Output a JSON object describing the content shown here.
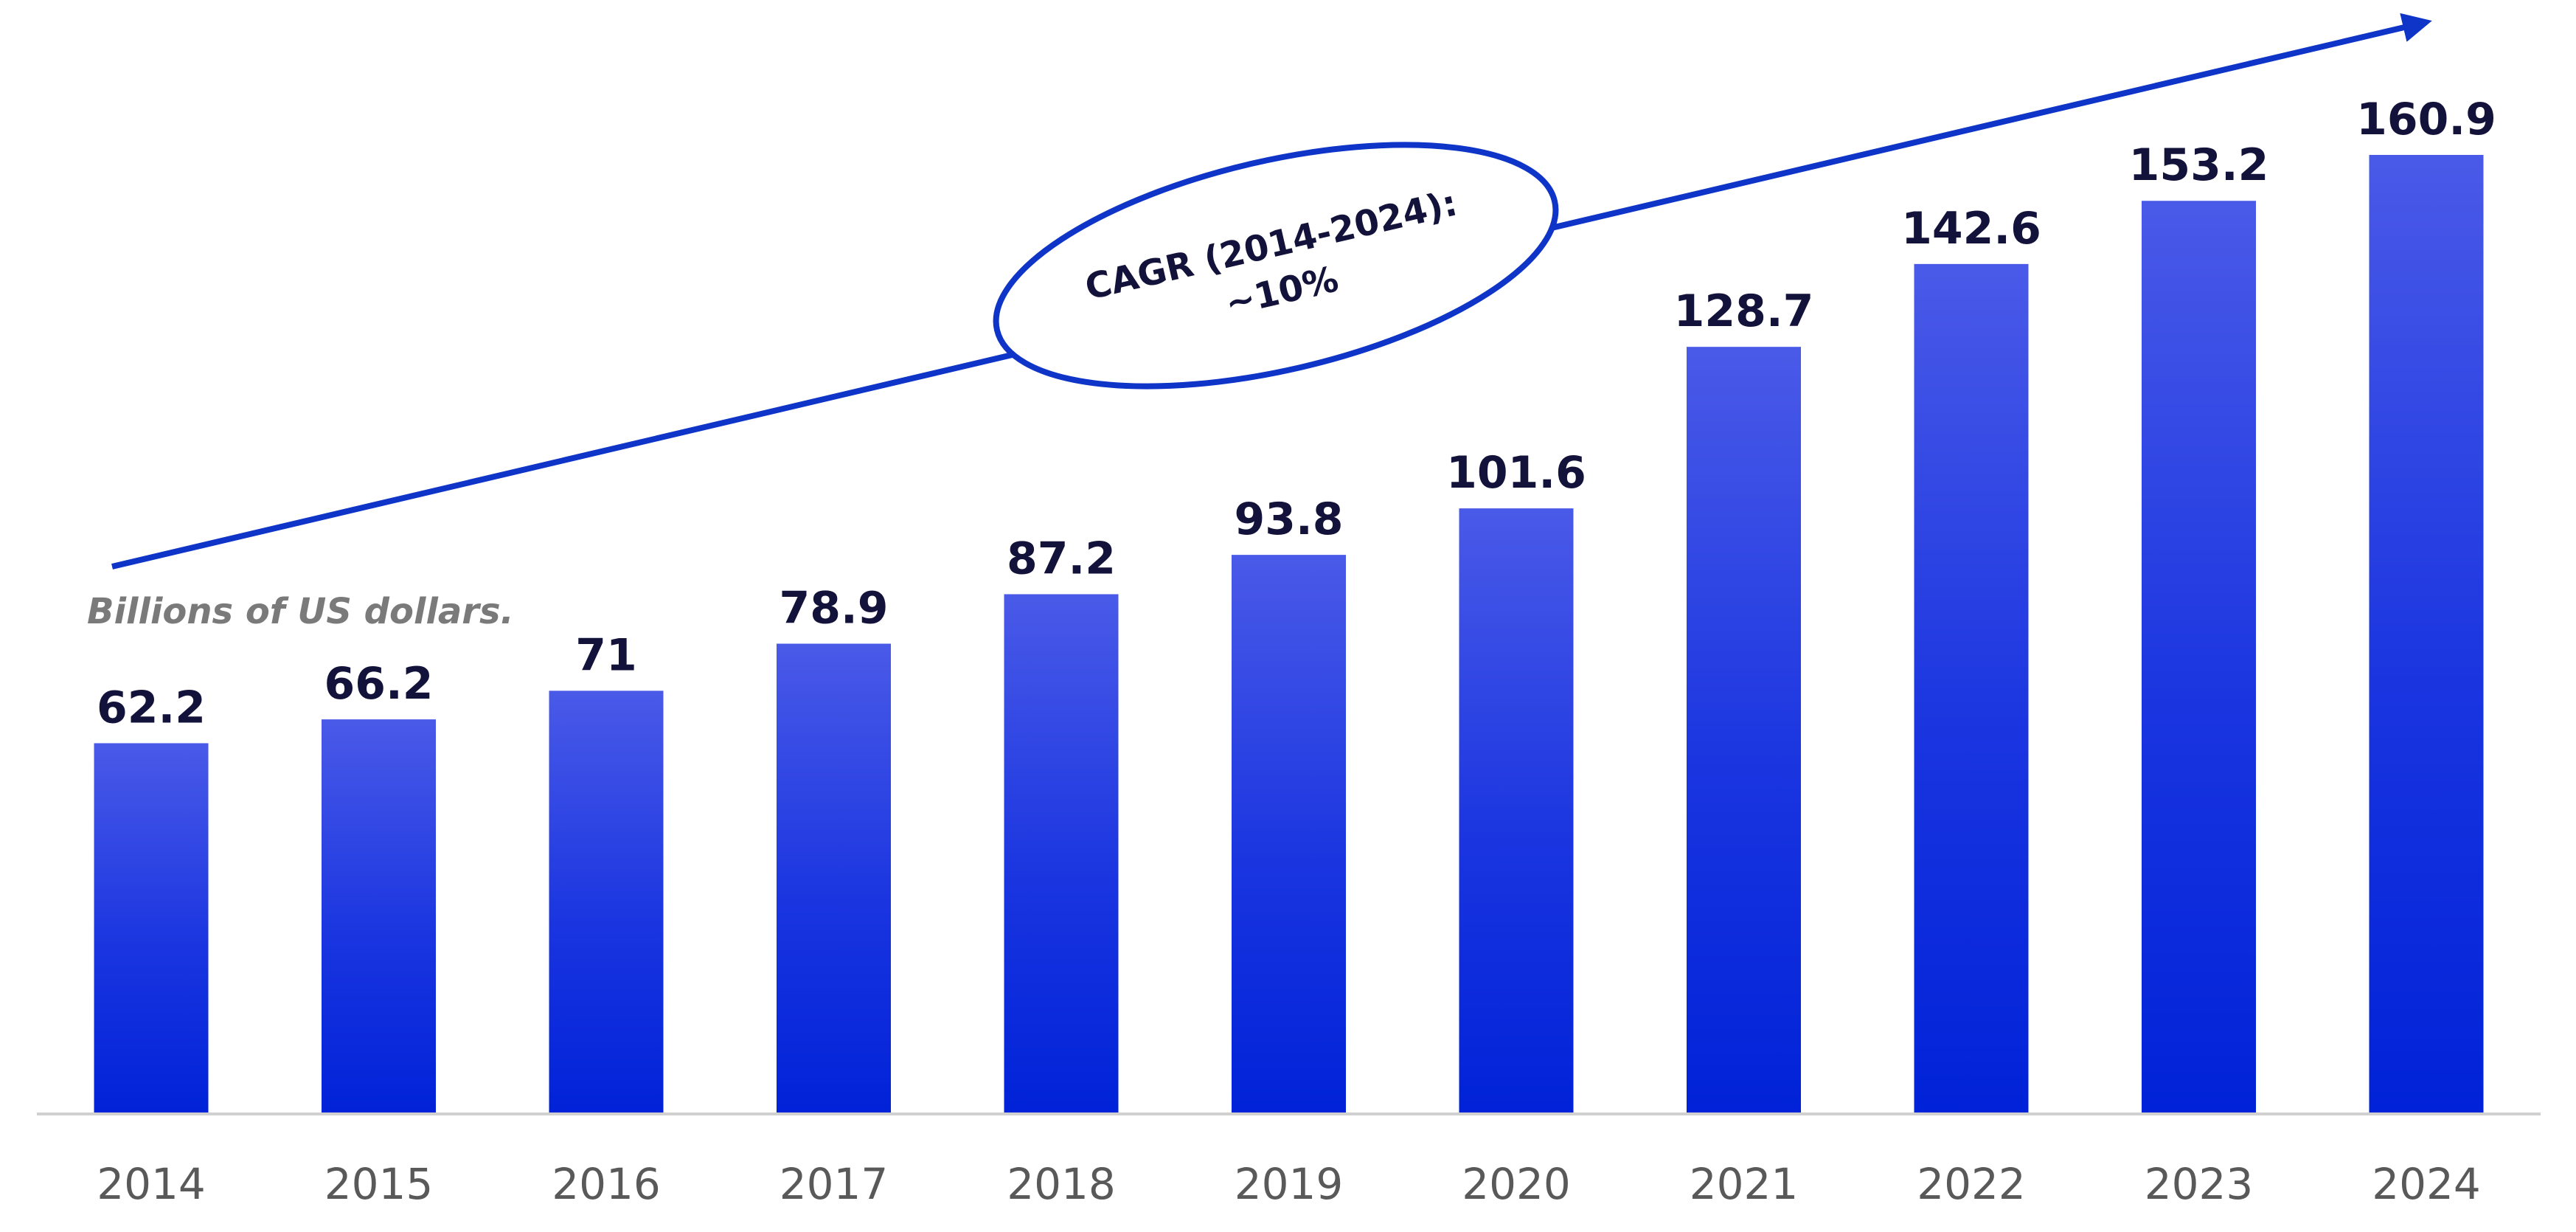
{
  "chart_data": {
    "type": "bar",
    "title": "",
    "xlabel": "",
    "ylabel": "",
    "unit_label": "Billions of US dollars.",
    "categories": [
      "2014",
      "2015",
      "2016",
      "2017",
      "2018",
      "2019",
      "2020",
      "2021",
      "2022",
      "2023",
      "2024"
    ],
    "values": [
      62.2,
      66.2,
      71,
      78.9,
      87.2,
      93.8,
      101.6,
      128.7,
      142.6,
      153.2,
      160.9
    ],
    "value_labels": [
      "62.2",
      "66.2",
      "71",
      "78.9",
      "87.2",
      "93.8",
      "101.6",
      "128.7",
      "142.6",
      "153.2",
      "160.9"
    ],
    "ylim": [
      0,
      160.9
    ],
    "grid": false,
    "legend": "none",
    "annotation": {
      "line1": "CAGR (2014-2024):",
      "line2": "~10%"
    },
    "colors": {
      "bar_top": "#4a5ae8",
      "bar_bottom": "#0022d8",
      "arrow": "#0f35c8",
      "axis": "#d0d0d0"
    }
  }
}
